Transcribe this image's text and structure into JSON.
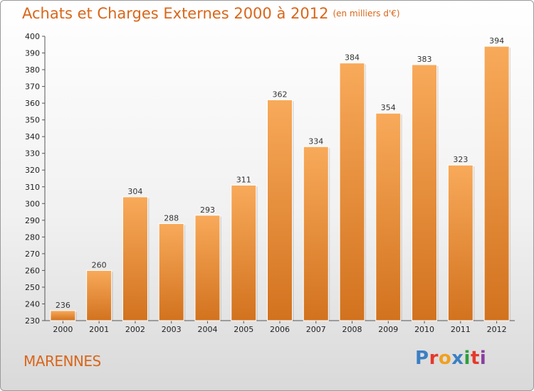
{
  "header": {
    "title": "Achats et Charges Externes 2000 à 2012",
    "unit": "(en milliers d'€)"
  },
  "location": "MARENNES",
  "logo": {
    "text": "Proxiti",
    "colors": [
      "#3b7fc4",
      "#e5392b",
      "#f0a020",
      "#3b7fc4",
      "#2e9e3e",
      "#e5392b",
      "#8a3fa0"
    ]
  },
  "colors": {
    "title": "#d9661a",
    "bar_light": "#f8aa5a",
    "bar_dark": "#d2721e"
  },
  "chart_data": {
    "type": "bar",
    "title": "Achats et Charges Externes 2000 à 2012",
    "subtitle": "(en milliers d'€)",
    "xlabel": "",
    "ylabel": "",
    "categories": [
      "2000",
      "2001",
      "2002",
      "2003",
      "2004",
      "2005",
      "2006",
      "2007",
      "2008",
      "2009",
      "2010",
      "2011",
      "2012"
    ],
    "values": [
      236,
      260,
      304,
      288,
      293,
      311,
      362,
      334,
      384,
      354,
      383,
      323,
      394
    ],
    "ylim": [
      230,
      400
    ],
    "ytick_step": 10,
    "grid": false,
    "legend": "none"
  }
}
